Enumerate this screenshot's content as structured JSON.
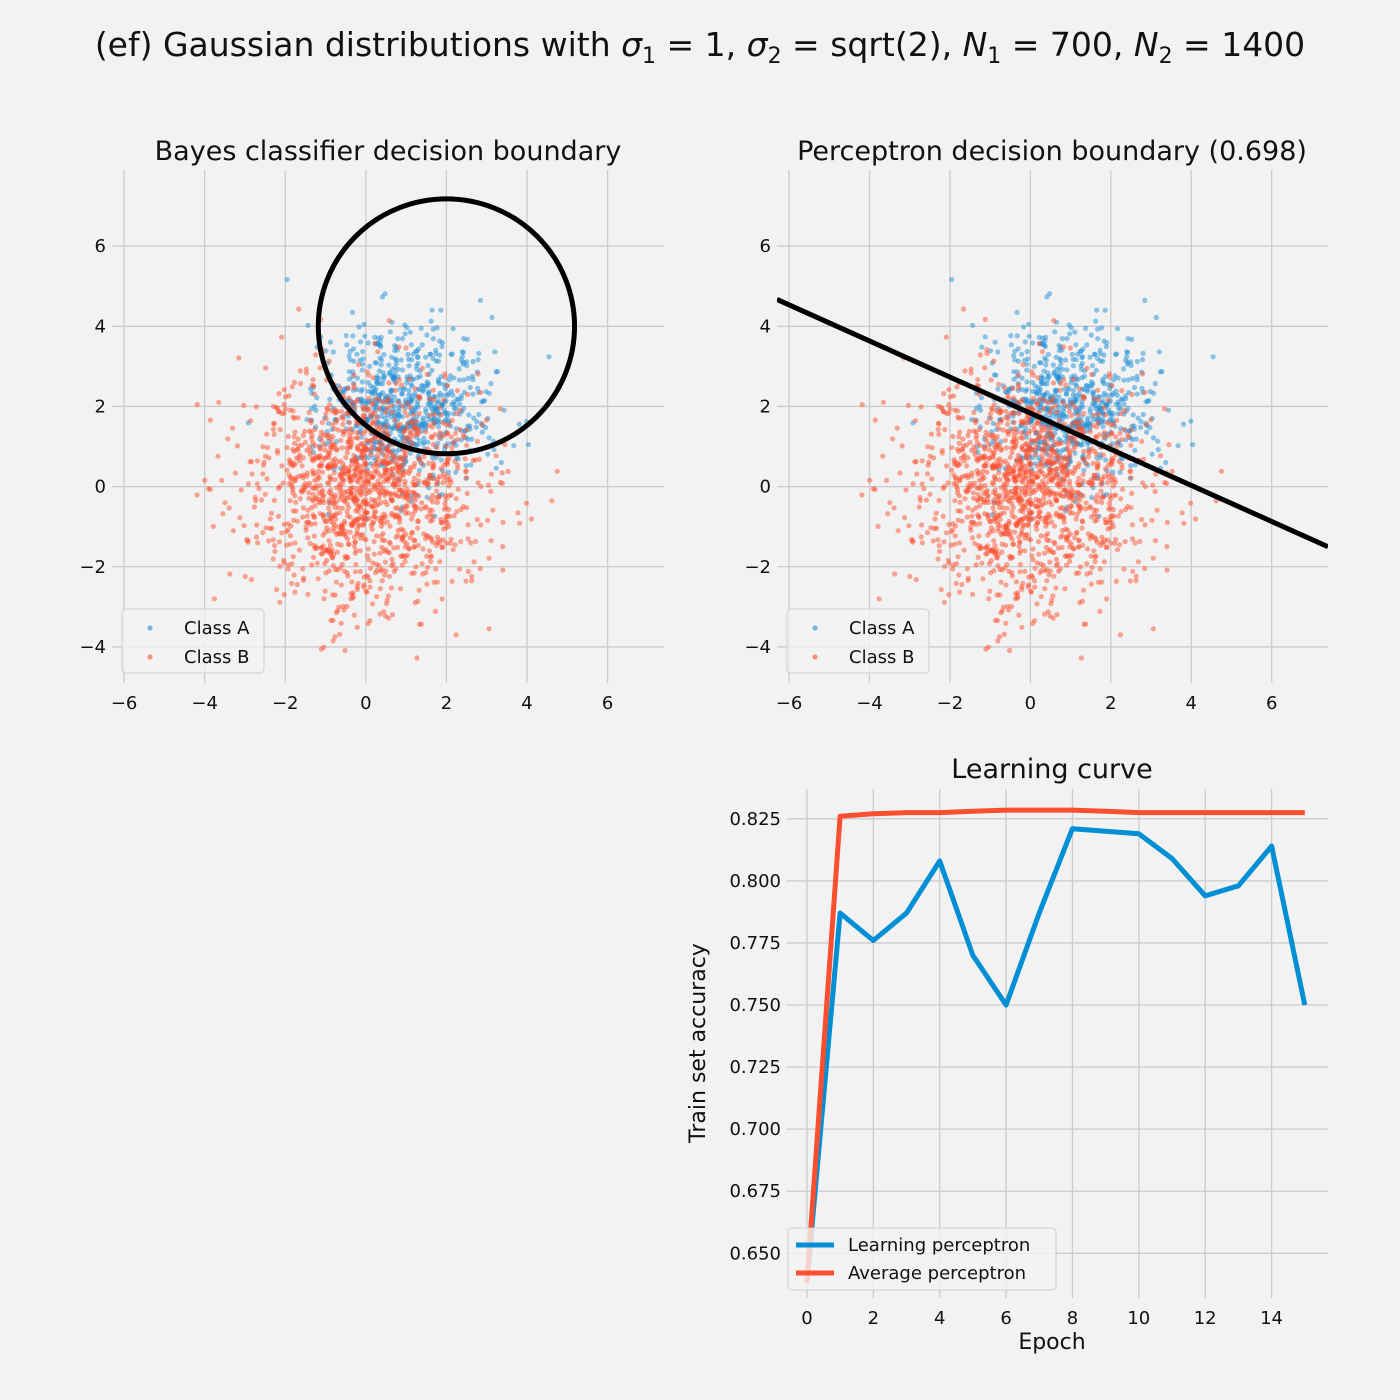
{
  "figure": {
    "title_prefix": "(ef) Gaussian distributions with ",
    "title_parts": [
      {
        "text": "(ef) Gaussian distributions with "
      },
      {
        "text": "σ",
        "italic": true
      },
      {
        "text": "1",
        "sub": true
      },
      {
        "text": " = 1, "
      },
      {
        "text": "σ",
        "italic": true
      },
      {
        "text": "2",
        "sub": true
      },
      {
        "text": " = sqrt(2), "
      },
      {
        "text": "N",
        "italic": true
      },
      {
        "text": "1",
        "sub": true
      },
      {
        "text": " = 700, "
      },
      {
        "text": "N",
        "italic": true
      },
      {
        "text": "2",
        "sub": true
      },
      {
        "text": " = 1400"
      }
    ]
  },
  "colors": {
    "class_a": "#1f8fd6",
    "class_b": "#fc4f30",
    "learning": "#008fd5",
    "average": "#fc4f30",
    "boundary": "#000000",
    "background": "#f2f2f2",
    "grid": "#cbcbcb"
  },
  "chart_data": [
    {
      "type": "scatter",
      "id": "bayes",
      "title": "Bayes classifier decision boundary",
      "xlim": [
        -6.3,
        7.4
      ],
      "ylim": [
        -4.9,
        7.9
      ],
      "xticks": [
        -6,
        -4,
        -2,
        0,
        2,
        4,
        6
      ],
      "xtick_labels": [
        "−6",
        "−4",
        "−2",
        "0",
        "2",
        "4",
        "6"
      ],
      "yticks": [
        -4,
        -2,
        0,
        2,
        4,
        6
      ],
      "ytick_labels": [
        "−4",
        "−2",
        "0",
        "2",
        "4",
        "6"
      ],
      "grid": true,
      "legend": "lower-left",
      "series": [
        {
          "name": "Class A",
          "mean": [
            1,
            2
          ],
          "std": 1,
          "n": 700
        },
        {
          "name": "Class B",
          "mean": [
            0,
            0
          ],
          "std": 1.4142,
          "n": 1400
        }
      ],
      "decision_boundary": {
        "shape": "circle",
        "center": [
          2,
          4
        ],
        "radius": 3.18
      }
    },
    {
      "type": "scatter",
      "id": "perceptron",
      "title": "Perceptron decision boundary (0.698)",
      "xlim": [
        -6.3,
        7.4
      ],
      "ylim": [
        -4.9,
        7.9
      ],
      "xticks": [
        -6,
        -4,
        -2,
        0,
        2,
        4,
        6
      ],
      "xtick_labels": [
        "−6",
        "−4",
        "−2",
        "0",
        "2",
        "4",
        "6"
      ],
      "yticks": [
        -4,
        -2,
        0,
        2,
        4,
        6
      ],
      "ytick_labels": [
        "−4",
        "−2",
        "0",
        "2",
        "4",
        "6"
      ],
      "grid": true,
      "legend": "lower-left",
      "series": [
        {
          "name": "Class A",
          "mean": [
            1,
            2
          ],
          "std": 1,
          "n": 700
        },
        {
          "name": "Class B",
          "mean": [
            0,
            0
          ],
          "std": 1.4142,
          "n": 1400
        }
      ],
      "decision_boundary": {
        "shape": "line",
        "points": [
          [
            -6.3,
            4.67
          ],
          [
            7.4,
            -1.5
          ]
        ]
      }
    },
    {
      "type": "line",
      "id": "learning",
      "title": "Learning curve",
      "xlabel": "Epoch",
      "ylabel": "Train set accuracy",
      "xlim": [
        -0.6,
        15.7
      ],
      "ylim": [
        0.632,
        0.837
      ],
      "xticks": [
        0,
        2,
        4,
        6,
        8,
        10,
        12,
        14
      ],
      "xtick_labels": [
        "0",
        "2",
        "4",
        "6",
        "8",
        "10",
        "12",
        "14"
      ],
      "yticks": [
        0.65,
        0.675,
        0.7,
        0.725,
        0.75,
        0.775,
        0.8,
        0.825
      ],
      "ytick_labels": [
        "0.650",
        "0.675",
        "0.700",
        "0.725",
        "0.750",
        "0.775",
        "0.800",
        "0.825"
      ],
      "grid": true,
      "legend": "lower-left",
      "x": [
        0,
        1,
        2,
        3,
        4,
        5,
        6,
        7,
        8,
        9,
        10,
        11,
        12,
        13,
        14,
        15
      ],
      "series": [
        {
          "name": "Learning perceptron",
          "values": [
            0.638,
            0.787,
            0.776,
            0.787,
            0.808,
            0.77,
            0.75,
            0.787,
            0.821,
            0.82,
            0.819,
            0.809,
            0.794,
            0.798,
            0.814,
            0.75
          ]
        },
        {
          "name": "Average perceptron",
          "values": [
            0.638,
            0.826,
            0.827,
            0.8275,
            0.8275,
            0.828,
            0.8285,
            0.8285,
            0.8285,
            0.828,
            0.8275,
            0.8275,
            0.8275,
            0.8275,
            0.8275,
            0.8275
          ]
        }
      ]
    }
  ]
}
